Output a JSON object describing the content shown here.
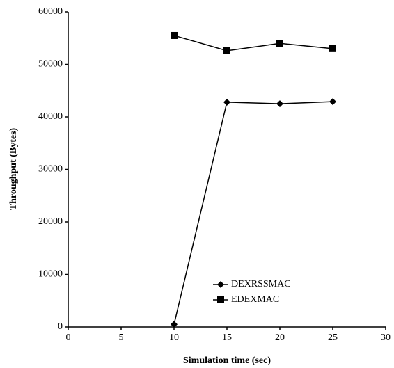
{
  "chart_data": {
    "type": "line",
    "xlabel": "Simulation time (sec)",
    "ylabel": "Throughput (Bytes)",
    "x": [
      10,
      15,
      20,
      25
    ],
    "series": [
      {
        "name": "DEXRSSMAC",
        "color": "#000000",
        "marker": "diamond",
        "values": [
          500,
          42800,
          42500,
          42900
        ]
      },
      {
        "name": "EDEXMAC",
        "color": "#000000",
        "marker": "square",
        "values": [
          55500,
          52600,
          54000,
          53000
        ]
      }
    ],
    "xlim": [
      0,
      30
    ],
    "xticks": [
      0,
      5,
      10,
      15,
      20,
      25,
      30
    ],
    "ylim": [
      0,
      60000
    ],
    "yticks": [
      0,
      10000,
      20000,
      30000,
      40000,
      50000,
      60000
    ],
    "legend": "lower center",
    "grid": false
  }
}
